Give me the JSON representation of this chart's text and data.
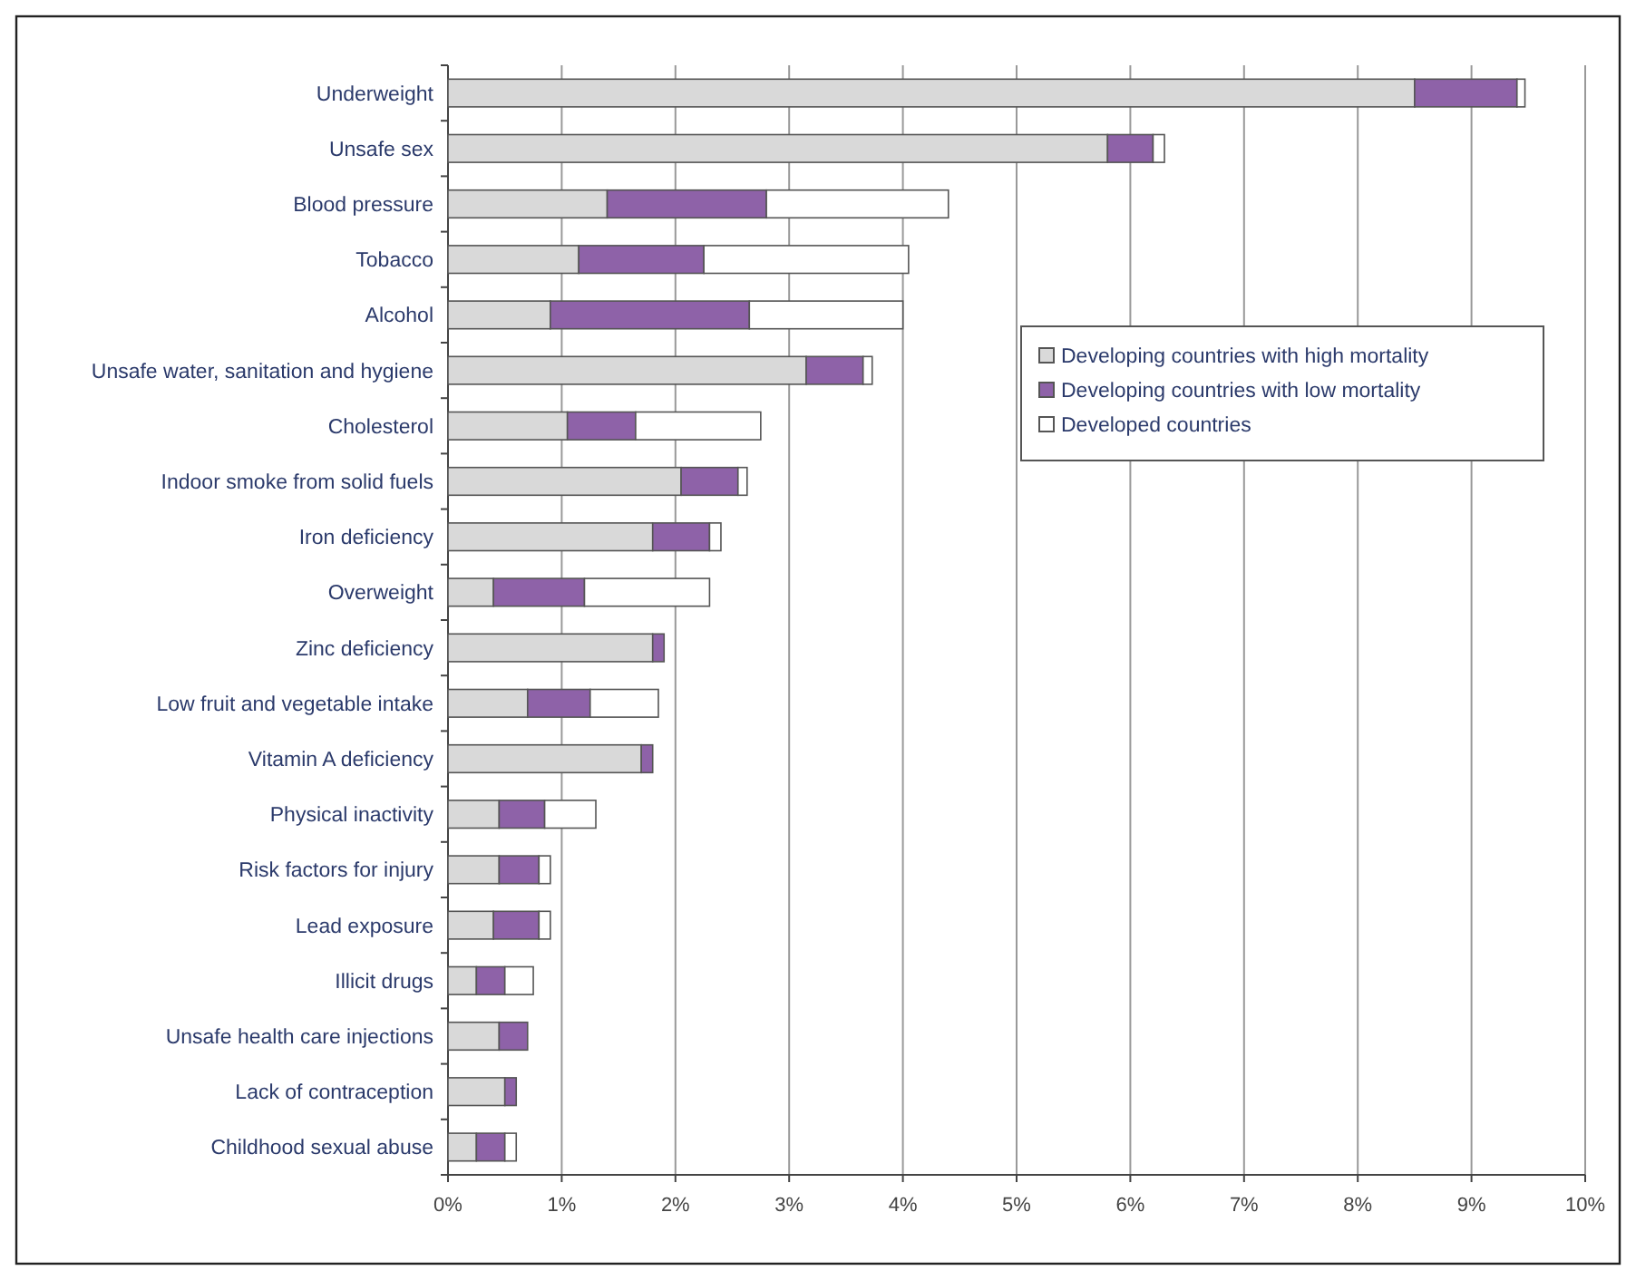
{
  "chart_data": {
    "type": "bar",
    "orientation": "horizontal",
    "stacked": true,
    "categories": [
      "Underweight",
      "Unsafe sex",
      "Blood pressure",
      "Tobacco",
      "Alcohol",
      "Unsafe water, sanitation and hygiene",
      "Cholesterol",
      "Indoor smoke from solid fuels",
      "Iron deficiency",
      "Overweight",
      "Zinc deficiency",
      "Low fruit and vegetable intake",
      "Vitamin A deficiency",
      "Physical inactivity",
      "Risk factors for injury",
      "Lead exposure",
      "Illicit drugs",
      "Unsafe health care injections",
      "Lack of contraception",
      "Childhood sexual abuse"
    ],
    "series": [
      {
        "name": "Developing countries with high mortality",
        "color": "#d9d9d9",
        "values": [
          8.5,
          5.8,
          1.4,
          1.15,
          0.9,
          3.15,
          1.05,
          2.05,
          1.8,
          0.4,
          1.8,
          0.7,
          1.7,
          0.45,
          0.45,
          0.4,
          0.25,
          0.45,
          0.5,
          0.25
        ]
      },
      {
        "name": "Developing countries with low mortality",
        "color": "#8e62a8",
        "values": [
          0.9,
          0.4,
          1.4,
          1.1,
          1.75,
          0.5,
          0.6,
          0.5,
          0.5,
          0.8,
          0.1,
          0.55,
          0.1,
          0.4,
          0.35,
          0.4,
          0.25,
          0.25,
          0.1,
          0.25
        ]
      },
      {
        "name": "Developed countries",
        "color": "#ffffff",
        "values": [
          0.07,
          0.1,
          1.6,
          1.8,
          1.35,
          0.08,
          1.1,
          0.08,
          0.1,
          1.1,
          0,
          0.6,
          0,
          0.45,
          0.1,
          0.1,
          0.25,
          0,
          0,
          0.1
        ]
      }
    ],
    "xlim": [
      0,
      10
    ],
    "xticks": [
      {
        "value": 0,
        "label": "0%"
      },
      {
        "value": 1,
        "label": "1%"
      },
      {
        "value": 2,
        "label": "2%"
      },
      {
        "value": 3,
        "label": "3%"
      },
      {
        "value": 4,
        "label": "4%"
      },
      {
        "value": 5,
        "label": "5%"
      },
      {
        "value": 6,
        "label": "6%"
      },
      {
        "value": 7,
        "label": "7%"
      },
      {
        "value": 8,
        "label": "8%"
      },
      {
        "value": 9,
        "label": "9%"
      },
      {
        "value": 10,
        "label": "10%"
      }
    ],
    "grid": "x",
    "legend": "top right"
  }
}
